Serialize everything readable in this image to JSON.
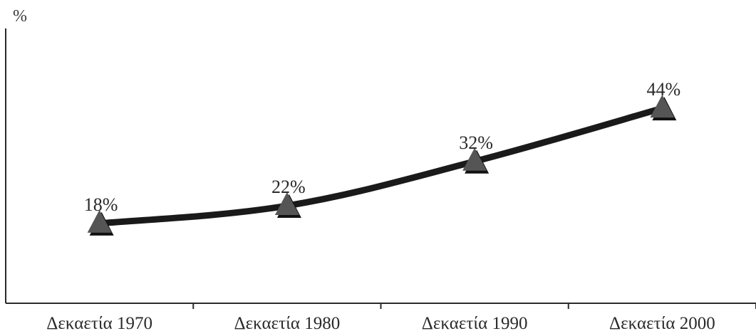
{
  "chart_data": {
    "type": "line",
    "title": "",
    "xlabel": "",
    "ylabel": "%",
    "categories": [
      "Δεκαετία 1970",
      "Δεκαετία 1980",
      "Δεκαετία 1990",
      "Δεκαετία 2000"
    ],
    "series": [
      {
        "values": [
          18,
          22,
          32,
          44
        ],
        "data_labels": [
          "18%",
          "22%",
          "32%",
          "44%"
        ],
        "marker": "triangle",
        "color": "#1a1a1a",
        "marker_color": "#555555"
      }
    ],
    "ylim": [
      0,
      62
    ],
    "grid": false,
    "legend": "none"
  }
}
